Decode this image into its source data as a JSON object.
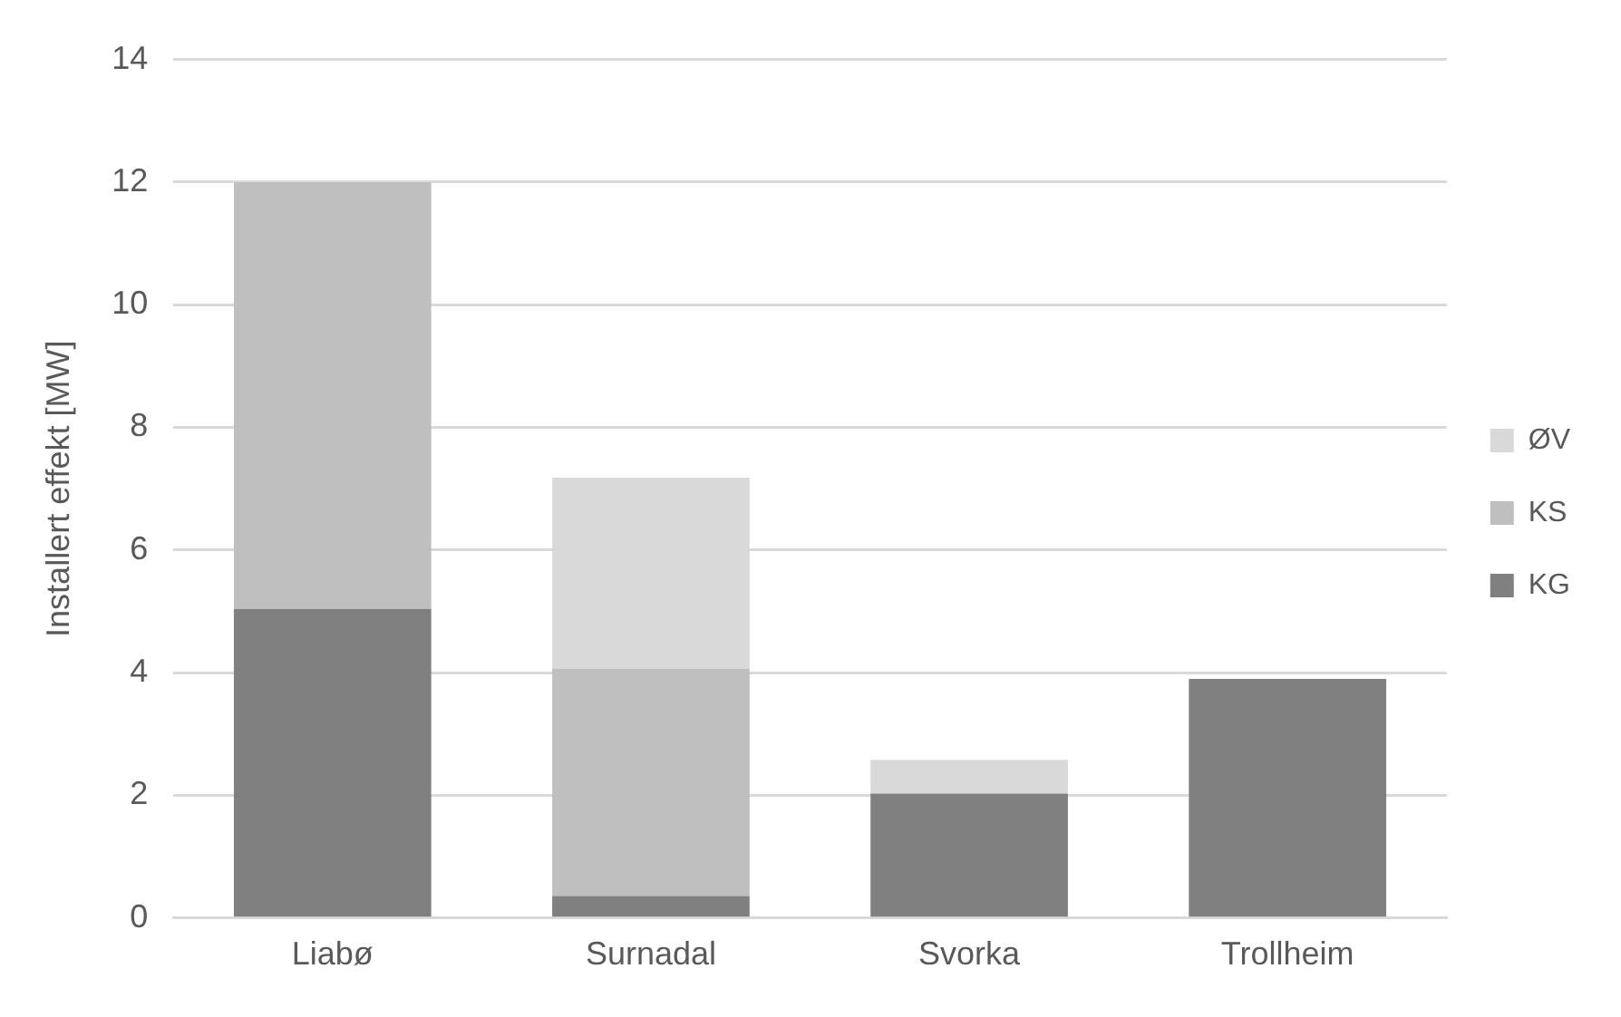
{
  "chart_data": {
    "type": "bar",
    "ylabel": "Installert effekt [MW]",
    "categories": [
      "Liabø",
      "Surnadal",
      "Svorka",
      "Trollheim"
    ],
    "stacked": true,
    "ylim": [
      0,
      14
    ],
    "yticks": [
      0,
      2,
      4,
      6,
      8,
      10,
      12,
      14
    ],
    "grid": "y",
    "legend": "right",
    "series": [
      {
        "name": "KG",
        "color": "#808080",
        "values": [
          5.04,
          0.36,
          2.03,
          3.9
        ]
      },
      {
        "name": "KS",
        "color": "#bfbfbf",
        "values": [
          6.96,
          3.7,
          null,
          null
        ]
      },
      {
        "name": "ØV",
        "color": "#d9d9d9",
        "values": [
          null,
          3.12,
          0.55,
          null
        ]
      }
    ]
  }
}
